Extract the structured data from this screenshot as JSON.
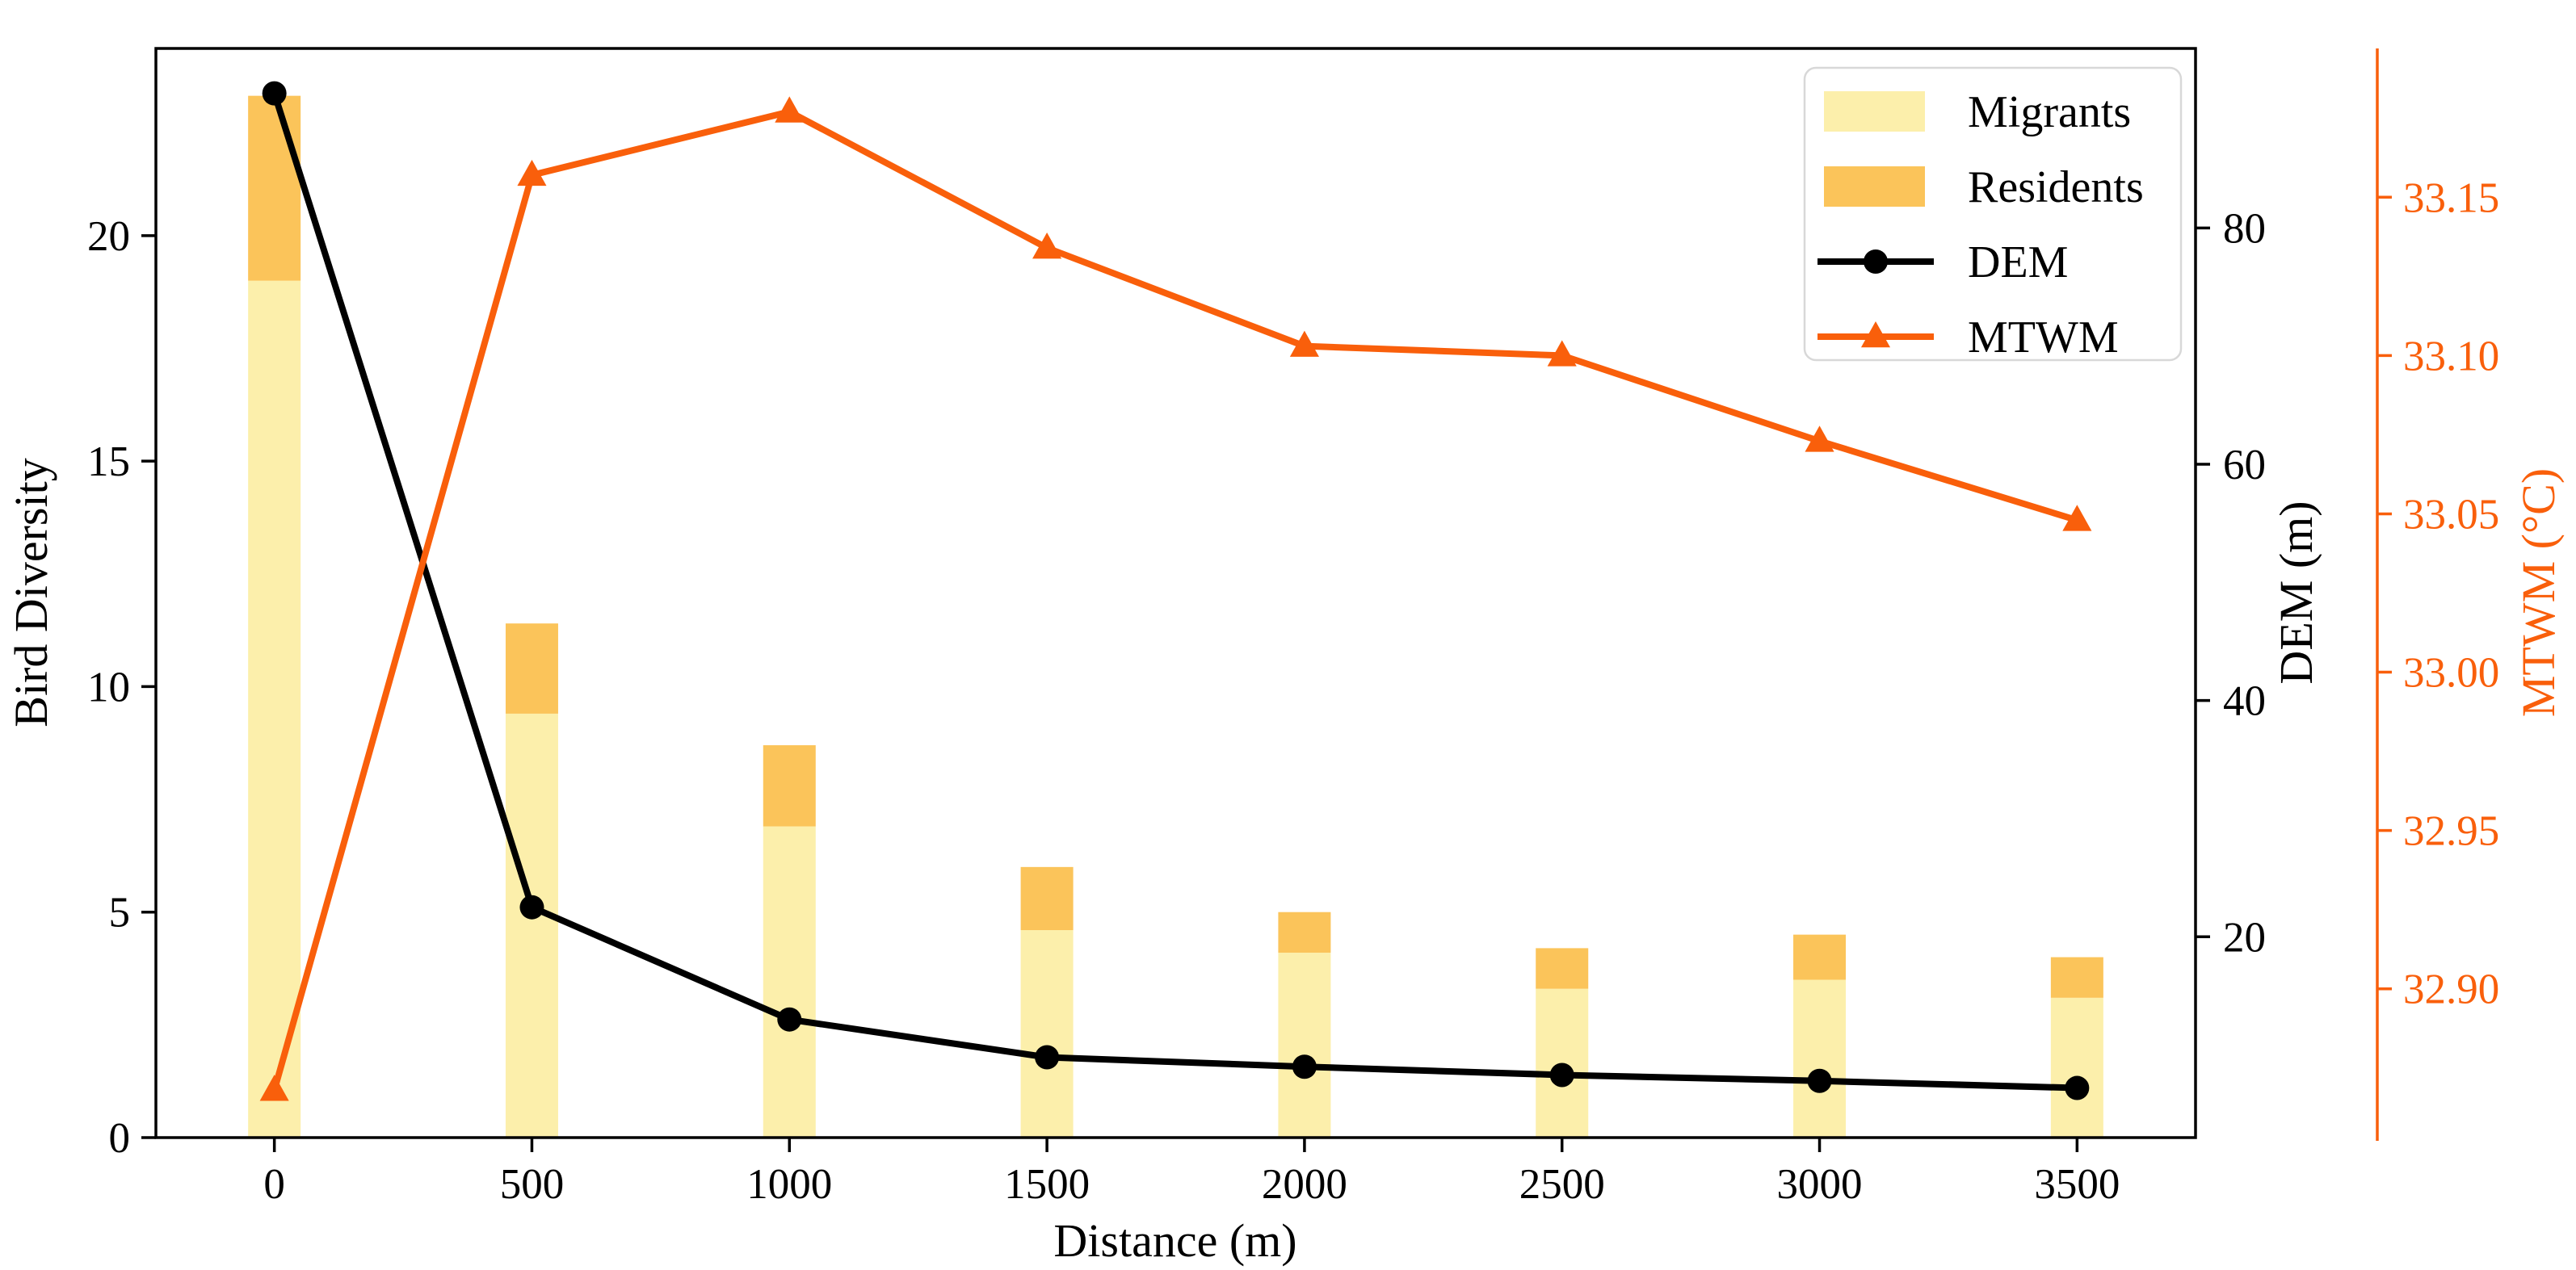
{
  "figure": {
    "xlabel": "Distance (m)",
    "ylabel_left": "Bird Diversity",
    "ylabel_dem": "DEM (m)",
    "ylabel_mtwm": "MTWM (°C)"
  },
  "colors": {
    "migrants": "#fcefab",
    "residents": "#fbc45a",
    "dem": "#000000",
    "mtwm": "#f95f0b",
    "legend_border": "#d8d8d8",
    "background": "#ffffff"
  },
  "legend": {
    "items": [
      {
        "label": "Migrants",
        "type": "patch",
        "color": "#fcefab"
      },
      {
        "label": "Residents",
        "type": "patch",
        "color": "#fbc45a"
      },
      {
        "label": "DEM",
        "type": "line-circle",
        "color": "#000000"
      },
      {
        "label": "MTWM",
        "type": "line-triangle",
        "color": "#f95f0b"
      }
    ]
  },
  "chart_data": {
    "type": "bar+line",
    "title": "",
    "xlabel": "Distance (m)",
    "x": [
      0,
      500,
      1000,
      1500,
      2000,
      2500,
      3000,
      3500
    ],
    "series": [
      {
        "name": "Migrants",
        "type": "bar-stack",
        "axis": "left",
        "color": "#fcefab",
        "values": [
          19.0,
          9.4,
          6.9,
          4.6,
          4.1,
          3.3,
          3.5,
          3.1
        ]
      },
      {
        "name": "Residents",
        "type": "bar-stack",
        "axis": "left",
        "color": "#fbc45a",
        "values": [
          4.1,
          2.0,
          1.8,
          1.4,
          0.9,
          0.9,
          1.0,
          0.9
        ]
      },
      {
        "name": "DEM",
        "type": "line",
        "marker": "circle",
        "axis": "dem",
        "color": "#000000",
        "values": [
          91.4,
          22.5,
          13.0,
          9.8,
          9.0,
          8.3,
          7.8,
          7.2
        ]
      },
      {
        "name": "MTWM",
        "type": "line",
        "marker": "triangle",
        "axis": "mtwm",
        "color": "#f95f0b",
        "values": [
          32.868,
          33.157,
          33.177,
          33.134,
          33.103,
          33.1,
          33.073,
          33.048
        ]
      }
    ],
    "axes": {
      "x": {
        "label": "Distance (m)",
        "ticks": [
          0,
          500,
          1000,
          1500,
          2000,
          2500,
          3000,
          3500
        ],
        "range": [
          -230,
          3730
        ]
      },
      "left": {
        "label": "Bird Diversity",
        "ticks": [
          0,
          5,
          10,
          15,
          20
        ],
        "range": [
          0,
          24.15
        ]
      },
      "dem": {
        "label": "DEM (m)",
        "ticks": [
          20,
          40,
          60,
          80
        ],
        "range": [
          3.0,
          95.2
        ]
      },
      "mtwm": {
        "label": "MTWM (°C)",
        "ticks": [
          32.9,
          32.95,
          33.0,
          33.05,
          33.1,
          33.15
        ],
        "range": [
          32.853,
          33.197
        ]
      }
    },
    "legend_position": "upper right",
    "grid": false
  }
}
